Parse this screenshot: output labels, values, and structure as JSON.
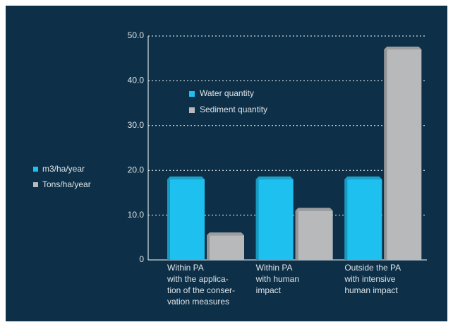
{
  "chart_data": {
    "type": "bar",
    "categories": [
      "Within PA\nwith the applica-\ntion of the conser-\nvation measures",
      "Within PA\nwith human\nimpact",
      "Outside the PA\nwith intensive\nhuman impact"
    ],
    "series": [
      {
        "name": "Water quantity",
        "unit": "m3/ha/year",
        "color": "#1ec0f0",
        "values": [
          18,
          18,
          18
        ]
      },
      {
        "name": "Sediment quantity",
        "unit": "Tons/ha/year",
        "color": "#b8b9bb",
        "values": [
          5.5,
          11,
          47
        ]
      }
    ],
    "ylim": [
      0,
      50
    ],
    "yticks": [
      0,
      {
        "value": 10,
        "label": "10.0"
      },
      {
        "value": 20,
        "label": "20.0"
      },
      {
        "value": 30,
        "label": "30.0"
      },
      {
        "value": 40,
        "label": "40.0"
      },
      {
        "value": 50,
        "label": "50.0"
      }
    ],
    "grid": true
  }
}
